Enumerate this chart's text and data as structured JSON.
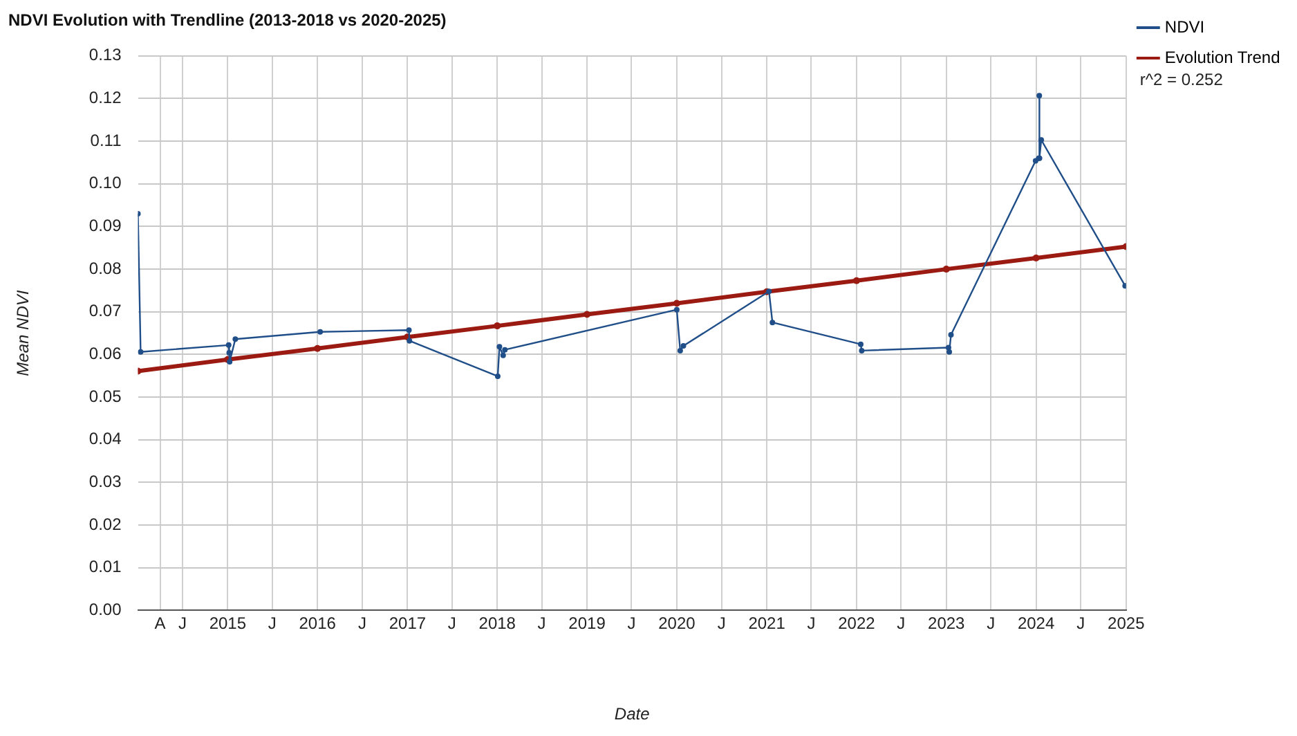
{
  "chart_data": {
    "type": "line",
    "title": "NDVI Evolution with Trendline (2013-2018 vs 2020-2025)",
    "xlabel": "Date",
    "ylabel": "Mean NDVI",
    "x": [
      "2014-01-01",
      "2014-01-12",
      "2015-01-05",
      "2015-01-07",
      "2015-01-09",
      "2015-02-01",
      "2016-01-12",
      "2017-01-07",
      "2017-01-09",
      "2018-01-03",
      "2018-01-10",
      "2018-01-25",
      "2018-02-01",
      "2020-01-01",
      "2020-01-15",
      "2020-01-28",
      "2021-01-10",
      "2021-01-24",
      "2022-01-18",
      "2022-01-22",
      "2023-01-10",
      "2023-01-13",
      "2023-01-20",
      "2023-12-30",
      "2024-01-12",
      "2024-01-14",
      "2024-01-15",
      "2024-01-22",
      "2024-12-28"
    ],
    "series": [
      {
        "name": "NDVI",
        "color": "#1f4e89",
        "values": [
          0.093,
          0.0606,
          0.0622,
          0.0604,
          0.0583,
          0.0636,
          0.0653,
          0.0657,
          0.0632,
          0.0549,
          0.0618,
          0.0598,
          0.0611,
          0.0705,
          0.0609,
          0.062,
          0.0748,
          0.0675,
          0.0624,
          0.0609,
          0.0616,
          0.0606,
          0.0646,
          0.1054,
          0.106,
          0.1207,
          0.106,
          0.1103,
          0.0761
        ]
      },
      {
        "name": "Evolution Trend",
        "color": "#9b1a12",
        "x": [
          "2014-01-01",
          "2015-01-01",
          "2016-01-01",
          "2017-01-01",
          "2018-01-01",
          "2019-01-01",
          "2020-01-01",
          "2021-01-01",
          "2022-01-01",
          "2023-01-01",
          "2024-01-01",
          "2025-01-01"
        ],
        "values": [
          0.0561,
          0.0588,
          0.0614,
          0.0641,
          0.0667,
          0.0694,
          0.072,
          0.0747,
          0.0773,
          0.08,
          0.0826,
          0.0853
        ]
      }
    ],
    "annotations": [
      "r^2 = 0.252"
    ],
    "xlim": [
      "2014-01-01",
      "2025-01-01"
    ],
    "xticks": [
      {
        "value": "2014-04-01",
        "label": "A"
      },
      {
        "value": "2014-07-01",
        "label": "J"
      },
      {
        "value": "2015-01-01",
        "label": "2015"
      },
      {
        "value": "2015-07-01",
        "label": "J"
      },
      {
        "value": "2016-01-01",
        "label": "2016"
      },
      {
        "value": "2016-07-01",
        "label": "J"
      },
      {
        "value": "2017-01-01",
        "label": "2017"
      },
      {
        "value": "2017-07-01",
        "label": "J"
      },
      {
        "value": "2018-01-01",
        "label": "2018"
      },
      {
        "value": "2018-07-01",
        "label": "J"
      },
      {
        "value": "2019-01-01",
        "label": "2019"
      },
      {
        "value": "2019-07-01",
        "label": "J"
      },
      {
        "value": "2020-01-01",
        "label": "2020"
      },
      {
        "value": "2020-07-01",
        "label": "J"
      },
      {
        "value": "2021-01-01",
        "label": "2021"
      },
      {
        "value": "2021-07-01",
        "label": "J"
      },
      {
        "value": "2022-01-01",
        "label": "2022"
      },
      {
        "value": "2022-07-01",
        "label": "J"
      },
      {
        "value": "2023-01-01",
        "label": "2023"
      },
      {
        "value": "2023-07-01",
        "label": "J"
      },
      {
        "value": "2024-01-01",
        "label": "2024"
      },
      {
        "value": "2024-07-01",
        "label": "J"
      },
      {
        "value": "2025-01-01",
        "label": "2025"
      }
    ],
    "ylim": [
      0,
      0.13
    ],
    "yticks": [
      {
        "value": 0,
        "label": "0.00"
      },
      {
        "value": 0.01,
        "label": "0.01"
      },
      {
        "value": 0.02,
        "label": "0.02"
      },
      {
        "value": 0.03,
        "label": "0.03"
      },
      {
        "value": 0.04,
        "label": "0.04"
      },
      {
        "value": 0.05,
        "label": "0.05"
      },
      {
        "value": 0.06,
        "label": "0.06"
      },
      {
        "value": 0.07,
        "label": "0.07"
      },
      {
        "value": 0.08,
        "label": "0.08"
      },
      {
        "value": 0.09,
        "label": "0.09"
      },
      {
        "value": 0.1,
        "label": "0.10"
      },
      {
        "value": 0.11,
        "label": "0.11"
      },
      {
        "value": 0.12,
        "label": "0.12"
      },
      {
        "value": 0.13,
        "label": "0.13"
      }
    ],
    "grid": true,
    "legend": "top right",
    "marker": "circle",
    "line_style": "solid"
  }
}
